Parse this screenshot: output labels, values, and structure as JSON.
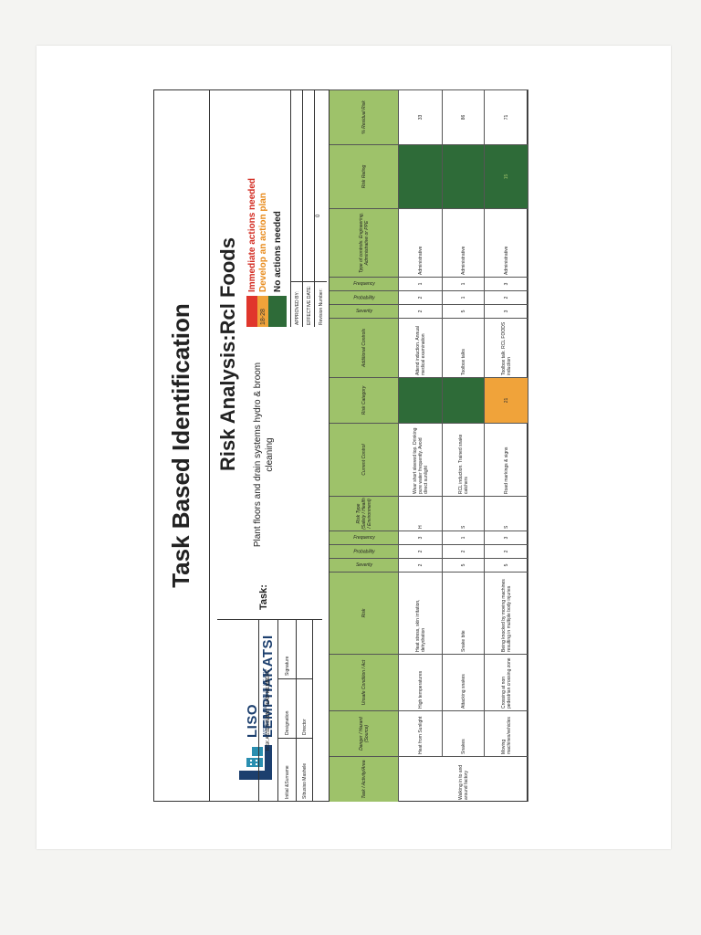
{
  "document": {
    "title": "Task Based Identification",
    "subtitle": "Risk Analysis:Rcl Foods"
  },
  "logo": {
    "name": "LISO LEMPHAKATSI",
    "tagline": "WE FOLLOW YOUR HEART",
    "colors": {
      "primary": "#1c3f6e",
      "accent": "#2a8fb0"
    }
  },
  "team": {
    "heading": "RISK ASSESSMENT TEAM MEMBERS",
    "columns": [
      "Initial &Surname",
      "Designation",
      "Signature"
    ],
    "members": [
      {
        "name": "Sibusiso Mashele",
        "designation": "Director",
        "signature": ""
      }
    ]
  },
  "task": {
    "label": "Task:",
    "value": "Plant floors and drain systems hydro & broom cleaning"
  },
  "legend": [
    {
      "range": "",
      "text": "Immediate actions needed",
      "color": "#e0362c",
      "text_color": "#d22a20"
    },
    {
      "range": "18-28",
      "text": "Develop an action plan",
      "color": "#f0a33a",
      "text_color": "#e88a1a"
    },
    {
      "range": "",
      "text": "No actions needed",
      "color": "#2e6b38",
      "text_color": "#222222"
    }
  ],
  "approvals": [
    {
      "label": "APPROVED BY:",
      "value": ""
    },
    {
      "label": "EFFECTIVE DATE:",
      "value": ""
    },
    {
      "label": "Revision Number:",
      "value": "0"
    }
  ],
  "table": {
    "headers": {
      "task": "Task / Activity/Area",
      "hazard": "Danger / Hazard (Source)",
      "condition": "Unsafe Condition / Act",
      "risk": "Risk",
      "severity": "Severity",
      "probability": "Probability",
      "frequency": "Frequency",
      "risk_type": "Risk Type (Safety / Health / Environment)",
      "current_control": "Current Control",
      "risk_category": "Risk Category",
      "additional_controls": "Additional Controls",
      "severity2": "Severity",
      "probability2": "Probability",
      "frequency2": "Frequency",
      "control_type": "Type of controls: Engineering, Administrative or PPE",
      "risk_rating": "Risk Rating",
      "residual": "% Residual Risk"
    },
    "task_value": "Walking in to and around factory",
    "rows": [
      {
        "hazard": "Heat from Sunlight",
        "condition": "High temperatures",
        "risk": "Heat stress, skin irritation, dehydration",
        "severity": "2",
        "probability": "2",
        "frequency": "3",
        "risk_type": "H",
        "current_control": "Wear short sleeved top. Drinking pure water frequently. Avoid direct sunlight",
        "risk_category": "",
        "additional_controls": "Attend induction. Annual medical examination",
        "severity2": "2",
        "probability2": "2",
        "frequency2": "1",
        "control_type": "Administrative",
        "risk_rating": "",
        "residual": "33"
      },
      {
        "hazard": "Snakes",
        "condition": "Attacking snakes",
        "risk": "Snake bite",
        "severity": "5",
        "probability": "2",
        "frequency": "1",
        "risk_type": "S",
        "current_control": "RCL induction. Trained snake catchers",
        "risk_category": "",
        "additional_controls": "Toolbox talks",
        "severity2": "5",
        "probability2": "1",
        "frequency2": "1",
        "control_type": "Administrative",
        "risk_rating": "",
        "residual": "86"
      },
      {
        "hazard": "Moving machines/vehicles",
        "condition": "Crossing at non pedestrian crossing zone",
        "risk": "Being knocked by moving machines resulting in multiple body injuries",
        "severity": "5",
        "probability": "2",
        "frequency": "3",
        "risk_type": "S",
        "current_control": "Road markings & signs",
        "risk_category": "21",
        "additional_controls": "Toolbox talk. RCL FOODS induction",
        "severity2": "3",
        "probability2": "2",
        "frequency2": "3",
        "control_type": "Administrative",
        "risk_rating": "15",
        "residual": "71"
      }
    ]
  }
}
